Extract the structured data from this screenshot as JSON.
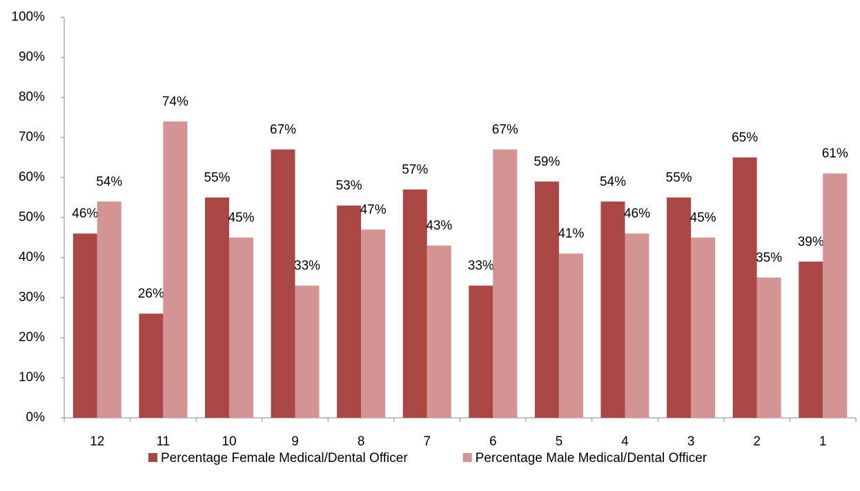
{
  "chart_data": {
    "type": "bar",
    "categories": [
      "12",
      "11",
      "10",
      "9",
      "8",
      "7",
      "6",
      "5",
      "4",
      "3",
      "2",
      "1"
    ],
    "series": [
      {
        "name": "Percentage Female Medical/Dental Officer",
        "color": "#a94745",
        "values": [
          46,
          26,
          55,
          67,
          53,
          57,
          33,
          59,
          54,
          55,
          65,
          39
        ],
        "value_labels": [
          "46%",
          "26%",
          "55%",
          "67%",
          "53%",
          "57%",
          "33%",
          "59%",
          "54%",
          "55%",
          "65%",
          "39%"
        ]
      },
      {
        "name": "Percentage Male Medical/Dental Officer",
        "color": "#d39493",
        "values": [
          54,
          74,
          45,
          33,
          47,
          43,
          67,
          41,
          46,
          45,
          35,
          61
        ],
        "value_labels": [
          "54%",
          "74%",
          "45%",
          "33%",
          "47%",
          "43%",
          "67%",
          "41%",
          "46%",
          "45%",
          "35%",
          "61%"
        ]
      }
    ],
    "ylim": [
      0,
      100
    ],
    "yticks": [
      {
        "value": 0,
        "label": "0%"
      },
      {
        "value": 10,
        "label": "10%"
      },
      {
        "value": 20,
        "label": "20%"
      },
      {
        "value": 30,
        "label": "30%"
      },
      {
        "value": 40,
        "label": "40%"
      },
      {
        "value": 50,
        "label": "50%"
      },
      {
        "value": 60,
        "label": "60%"
      },
      {
        "value": 70,
        "label": "70%"
      },
      {
        "value": 80,
        "label": "80%"
      },
      {
        "value": 90,
        "label": "90%"
      },
      {
        "value": 100,
        "label": "100%"
      }
    ],
    "grid": false,
    "legend": "bottom"
  }
}
